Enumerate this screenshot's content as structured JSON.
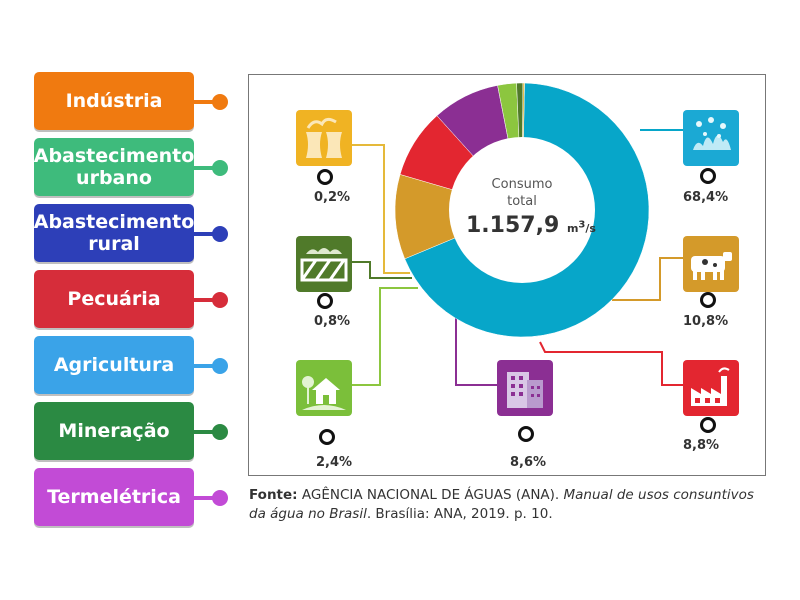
{
  "labels": [
    {
      "text": "Indústria",
      "color": "#f07a10"
    },
    {
      "text": "Abastecimento urbano",
      "color": "#3ebb7c"
    },
    {
      "text": "Abastecimento rural",
      "color": "#2d3fb8"
    },
    {
      "text": "Pecuária",
      "color": "#d62d3a"
    },
    {
      "text": "Agricultura",
      "color": "#3aa3e8"
    },
    {
      "text": "Mineração",
      "color": "#2b8a43"
    },
    {
      "text": "Termelétrica",
      "color": "#c24bd6"
    }
  ],
  "center": {
    "title_line1": "Consumo",
    "title_line2": "total",
    "value": "1.157,9",
    "unit_base": "m",
    "unit_sup": "3",
    "unit_rest": "/s"
  },
  "chart_data": {
    "type": "pie",
    "total": 1157.9,
    "slices": [
      {
        "value": 68.4,
        "label": "68,4%",
        "color": "#07a6c9"
      },
      {
        "value": 10.8,
        "label": "10,8%",
        "color": "#d49a2a"
      },
      {
        "value": 8.8,
        "label": "8,8%",
        "color": "#e32630"
      },
      {
        "value": 8.6,
        "label": "8,6%",
        "color": "#8b2f93"
      },
      {
        "value": 2.4,
        "label": "2,4%",
        "color": "#8cc63f"
      },
      {
        "value": 0.8,
        "label": "0,8%",
        "color": "#507a2a"
      },
      {
        "value": 0.2,
        "label": "0,2%",
        "color": "#e5b93a"
      }
    ]
  },
  "icons": [
    {
      "name": "water-drops-icon",
      "color": "#1ba9d4"
    },
    {
      "name": "cattle-icon",
      "color": "#d49a2a"
    },
    {
      "name": "factory-icon",
      "color": "#e32630"
    },
    {
      "name": "buildings-icon",
      "color": "#8b2f93"
    },
    {
      "name": "house-icon",
      "color": "#7bbf3a"
    },
    {
      "name": "farm-fence-icon",
      "color": "#507a2a"
    },
    {
      "name": "power-plant-icon",
      "color": "#f0b323"
    }
  ],
  "source": {
    "bold": "Fonte:",
    "text1": " AGÊNCIA NACIONAL DE ÁGUAS (ANA). ",
    "italic1": "Manual de usos consuntivos da água no Brasil",
    "text2": ". Brasília: ANA, 2019. p. 10."
  }
}
